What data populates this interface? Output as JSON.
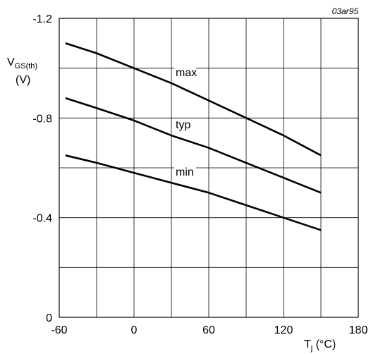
{
  "chart_data": {
    "type": "line",
    "code": "03ar95",
    "ylabel": {
      "main": "V",
      "sub": "GS(th)",
      "unit": "(V)"
    },
    "xlabel": {
      "main": "T",
      "sub": "j",
      "unit": " (°C)"
    },
    "xlim": [
      -60,
      180
    ],
    "ylim": [
      0,
      -1.2
    ],
    "x_ticks": [
      "-60",
      "0",
      "60",
      "120",
      "180"
    ],
    "y_ticks": [
      "0",
      "-0.4",
      "-0.8",
      "-1.2"
    ],
    "grid": true,
    "series": [
      {
        "name": "max",
        "x": [
          -55,
          -30,
          0,
          30,
          60,
          90,
          120,
          150
        ],
        "y": [
          -1.1,
          -1.06,
          -1.0,
          -0.94,
          -0.87,
          -0.8,
          -0.73,
          -0.65
        ]
      },
      {
        "name": "typ",
        "x": [
          -55,
          -30,
          0,
          30,
          60,
          90,
          120,
          150
        ],
        "y": [
          -0.88,
          -0.84,
          -0.79,
          -0.73,
          -0.68,
          -0.62,
          -0.56,
          -0.5
        ]
      },
      {
        "name": "min",
        "x": [
          -55,
          -30,
          0,
          30,
          60,
          90,
          120,
          150
        ],
        "y": [
          -0.65,
          -0.62,
          -0.58,
          -0.54,
          -0.5,
          -0.45,
          -0.4,
          -0.35
        ]
      }
    ]
  }
}
